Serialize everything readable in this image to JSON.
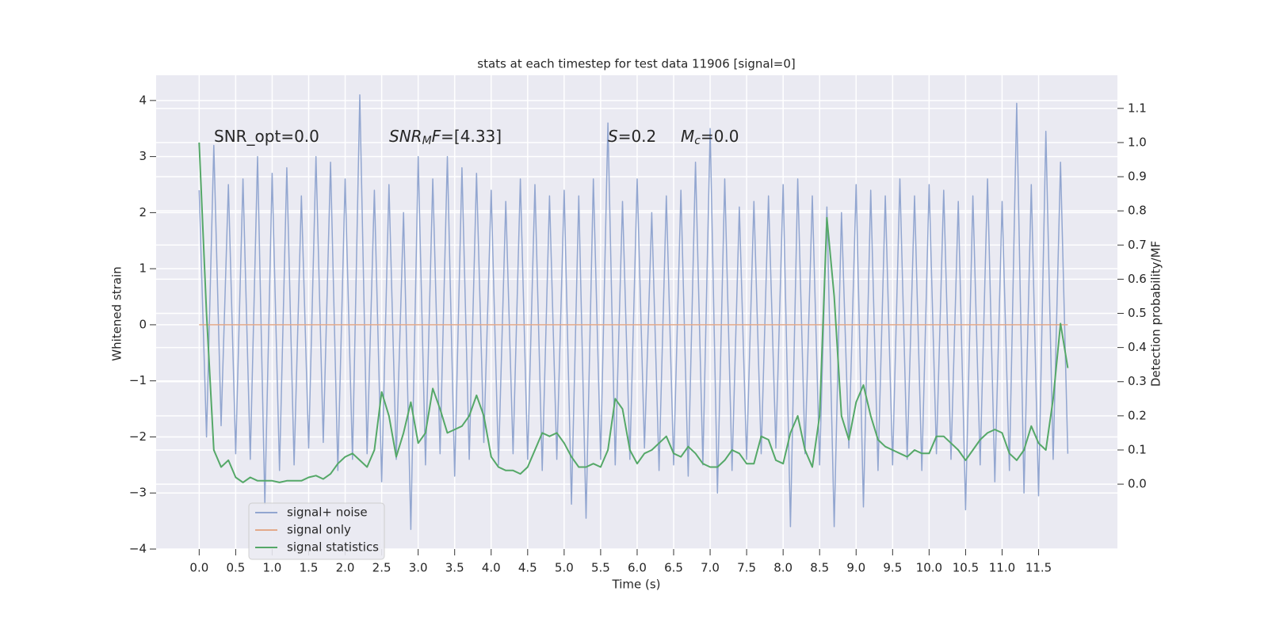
{
  "chart_data": {
    "type": "line",
    "title": "stats at each timestep for test data 11906 [signal=0]",
    "xlabel": "Time (s)",
    "ylabel": "Whitened strain",
    "y2label": "Detection probability/MF",
    "annotations": [
      {
        "parts": [
          "SNR_opt=0.0"
        ]
      },
      {
        "parts": [
          "SNR",
          "M",
          "F",
          "=[4.33]"
        ]
      },
      {
        "parts": [
          "S",
          "=0.2"
        ]
      },
      {
        "parts": [
          "M",
          "c",
          "=0.0"
        ]
      }
    ],
    "grid": true,
    "xlim": [
      -0.59,
      12.58
    ],
    "xticks": [
      {
        "value": 0,
        "label": "0.0"
      },
      0.5,
      {
        "value": 1,
        "label": "1.0"
      },
      1.5,
      {
        "value": 2,
        "label": "2.0"
      },
      2.5,
      {
        "value": 3,
        "label": "3.0"
      },
      3.5,
      {
        "value": 4,
        "label": "4.0"
      },
      4.5,
      {
        "value": 5,
        "label": "5.0"
      },
      5.5,
      {
        "value": 6,
        "label": "6.0"
      },
      6.5,
      {
        "value": 7,
        "label": "7.0"
      },
      7.5,
      {
        "value": 8,
        "label": "8.0"
      },
      8.5,
      {
        "value": 9,
        "label": "9.0"
      },
      9.5,
      {
        "value": 10,
        "label": "10.0"
      },
      10.5,
      {
        "value": 11,
        "label": "11.0"
      },
      11.5
    ],
    "ylim": [
      -4.0,
      4.45
    ],
    "yticks": [
      {
        "value": -4,
        "label": "−4"
      },
      {
        "value": -3,
        "label": "−3"
      },
      {
        "value": -2,
        "label": "−2"
      },
      {
        "value": -1,
        "label": "−1"
      },
      0,
      1,
      2,
      3,
      4
    ],
    "y2lim": [
      -0.19,
      1.197
    ],
    "y2ticks": [
      {
        "value": 0,
        "label": "0.0"
      },
      0.1,
      0.2,
      0.3,
      0.4,
      0.5,
      0.6,
      0.7,
      0.8,
      0.9,
      {
        "value": 1,
        "label": "1.0"
      },
      1.1
    ],
    "x": [
      0,
      0.1,
      0.2,
      0.3,
      0.4,
      0.5,
      0.6,
      0.7,
      0.8,
      0.9,
      1,
      1.1,
      1.2,
      1.3,
      1.4,
      1.5,
      1.6,
      1.7,
      1.8,
      1.9,
      2,
      2.1,
      2.2,
      2.3,
      2.4,
      2.5,
      2.6,
      2.7,
      2.8,
      2.9,
      3,
      3.1,
      3.2,
      3.3,
      3.4,
      3.5,
      3.6,
      3.7,
      3.8,
      3.9,
      4,
      4.1,
      4.2,
      4.3,
      4.4,
      4.5,
      4.6,
      4.7,
      4.8,
      4.9,
      5,
      5.1,
      5.2,
      5.3,
      5.4,
      5.5,
      5.6,
      5.7,
      5.8,
      5.9,
      6,
      6.1,
      6.2,
      6.3,
      6.4,
      6.5,
      6.6,
      6.7,
      6.8,
      6.9,
      7,
      7.1,
      7.2,
      7.3,
      7.4,
      7.5,
      7.6,
      7.7,
      7.8,
      7.9,
      8,
      8.1,
      8.2,
      8.3,
      8.4,
      8.5,
      8.6,
      8.7,
      8.8,
      8.9,
      9,
      9.1,
      9.2,
      9.3,
      9.4,
      9.5,
      9.6,
      9.7,
      9.8,
      9.9,
      10,
      10.1,
      10.2,
      10.3,
      10.4,
      10.5,
      10.6,
      10.7,
      10.8,
      10.9,
      11,
      11.1,
      11.2,
      11.3,
      11.4,
      11.5,
      11.6,
      11.7,
      11.8,
      11.9
    ],
    "series": [
      {
        "name": "signal+ noise",
        "color": "#92a6d0",
        "values": [
          2.4,
          -2.0,
          3.2,
          -1.8,
          2.5,
          -2.3,
          2.6,
          -2.4,
          3.0,
          -3.2,
          2.7,
          -2.6,
          2.8,
          -2.5,
          2.3,
          -2.2,
          3.0,
          -2.1,
          2.9,
          -2.6,
          2.6,
          -2.4,
          4.1,
          -2.3,
          2.4,
          -2.8,
          2.5,
          -2.4,
          2.0,
          -3.65,
          3.0,
          -2.5,
          2.6,
          -2.3,
          3.0,
          -2.7,
          2.8,
          -2.4,
          2.7,
          -2.1,
          2.4,
          -2.5,
          2.2,
          -2.3,
          2.6,
          -2.4,
          2.5,
          -2.6,
          2.3,
          -2.4,
          2.4,
          -3.2,
          2.3,
          -3.45,
          2.6,
          -2.4,
          3.6,
          -2.5,
          2.2,
          -2.4,
          2.6,
          -2.2,
          2.0,
          -2.6,
          2.3,
          -2.5,
          2.4,
          -2.7,
          2.9,
          -2.5,
          3.5,
          -3.0,
          2.6,
          -2.6,
          2.1,
          -2.4,
          2.2,
          -2.3,
          2.3,
          -2.2,
          2.5,
          -3.6,
          2.6,
          -2.3,
          2.3,
          -2.5,
          2.1,
          -3.6,
          2.0,
          -2.2,
          2.5,
          -3.25,
          2.4,
          -2.6,
          2.3,
          -2.5,
          2.6,
          -2.4,
          2.3,
          -2.6,
          2.5,
          -2.3,
          2.4,
          -2.4,
          2.2,
          -3.3,
          2.3,
          -2.5,
          2.6,
          -2.8,
          2.2,
          -2.6,
          3.95,
          -3.0,
          2.5,
          -3.05,
          3.45,
          -2.4,
          2.9,
          -2.3
        ]
      },
      {
        "name": "signal only",
        "color": "#e3a98a",
        "values": [
          0,
          0,
          0,
          0,
          0,
          0,
          0,
          0,
          0,
          0,
          0,
          0,
          0,
          0,
          0,
          0,
          0,
          0,
          0,
          0,
          0,
          0,
          0,
          0,
          0,
          0,
          0,
          0,
          0,
          0,
          0,
          0,
          0,
          0,
          0,
          0,
          0,
          0,
          0,
          0,
          0,
          0,
          0,
          0,
          0,
          0,
          0,
          0,
          0,
          0,
          0,
          0,
          0,
          0,
          0,
          0,
          0,
          0,
          0,
          0,
          0,
          0,
          0,
          0,
          0,
          0,
          0,
          0,
          0,
          0,
          0,
          0,
          0,
          0,
          0,
          0,
          0,
          0,
          0,
          0,
          0,
          0,
          0,
          0,
          0,
          0,
          0,
          0,
          0,
          0,
          0,
          0,
          0,
          0,
          0,
          0,
          0,
          0,
          0,
          0,
          0,
          0,
          0,
          0,
          0,
          0,
          0,
          0,
          0,
          0,
          0,
          0,
          0,
          0,
          0,
          0,
          0,
          0,
          0,
          0
        ]
      },
      {
        "name": "signal statistics",
        "color": "#55a868",
        "axis": "y2",
        "values": [
          1.0,
          0.5,
          0.1,
          0.05,
          0.07,
          0.02,
          0.005,
          0.02,
          0.01,
          0.01,
          0.01,
          0.005,
          0.01,
          0.01,
          0.01,
          0.02,
          0.025,
          0.015,
          0.03,
          0.06,
          0.08,
          0.09,
          0.07,
          0.05,
          0.1,
          0.27,
          0.2,
          0.08,
          0.15,
          0.24,
          0.12,
          0.15,
          0.28,
          0.22,
          0.15,
          0.16,
          0.17,
          0.2,
          0.26,
          0.2,
          0.08,
          0.05,
          0.04,
          0.04,
          0.03,
          0.05,
          0.1,
          0.15,
          0.14,
          0.15,
          0.12,
          0.08,
          0.05,
          0.05,
          0.06,
          0.05,
          0.1,
          0.25,
          0.22,
          0.1,
          0.06,
          0.09,
          0.1,
          0.12,
          0.14,
          0.09,
          0.08,
          0.11,
          0.09,
          0.06,
          0.05,
          0.05,
          0.07,
          0.1,
          0.09,
          0.06,
          0.06,
          0.14,
          0.13,
          0.07,
          0.06,
          0.15,
          0.2,
          0.1,
          0.05,
          0.2,
          0.78,
          0.55,
          0.2,
          0.13,
          0.24,
          0.29,
          0.2,
          0.13,
          0.11,
          0.1,
          0.09,
          0.08,
          0.1,
          0.09,
          0.09,
          0.14,
          0.14,
          0.12,
          0.1,
          0.07,
          0.1,
          0.13,
          0.15,
          0.16,
          0.15,
          0.09,
          0.07,
          0.1,
          0.17,
          0.12,
          0.1,
          0.25,
          0.47,
          0.34
        ]
      }
    ]
  }
}
